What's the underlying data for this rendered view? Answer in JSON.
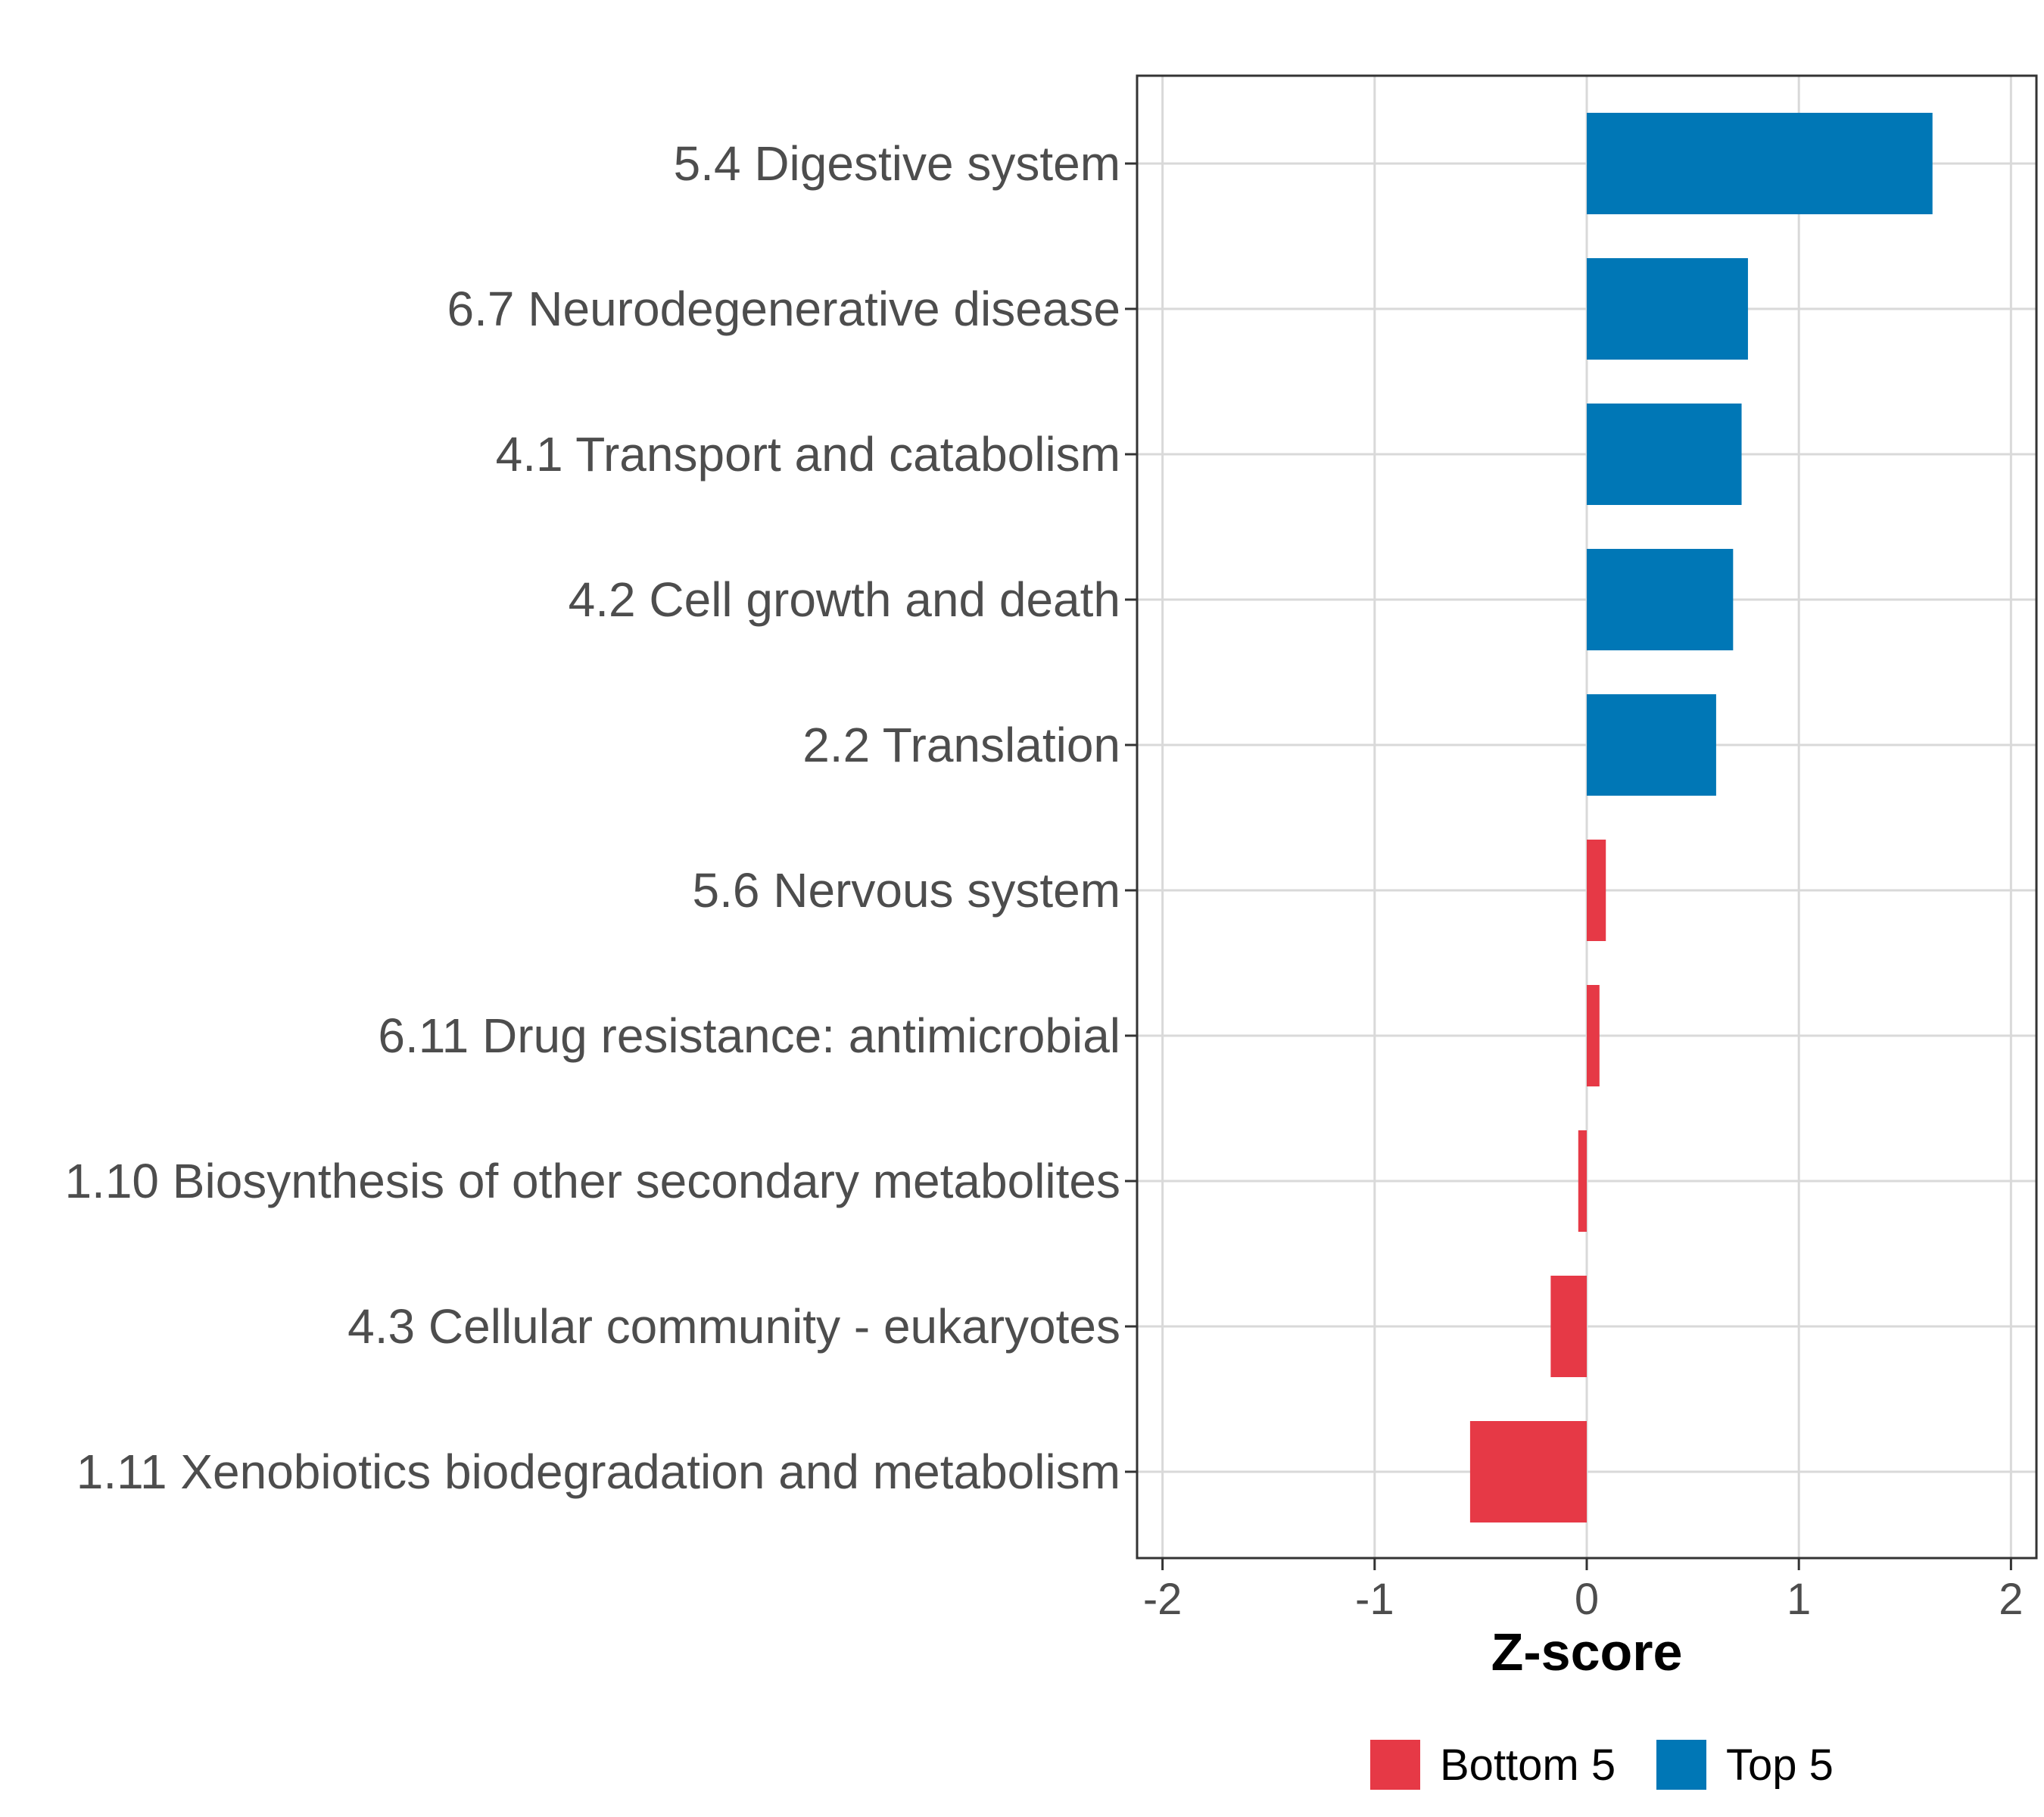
{
  "chart_data": {
    "type": "bar",
    "orientation": "horizontal",
    "title": "",
    "xlabel": "Z-score",
    "ylabel": "",
    "xlim": [
      -2.12,
      2.12
    ],
    "xticks": [
      -2,
      -1,
      0,
      1,
      2
    ],
    "xtick_labels": [
      "-2",
      "-1",
      "0",
      "1",
      "2"
    ],
    "grid": true,
    "categories": [
      "5.4 Digestive system",
      "6.7 Neurodegenerative disease",
      "4.1 Transport and catabolism",
      "4.2 Cell growth and death",
      "2.2 Translation",
      "5.6 Nervous system",
      "6.11 Drug resistance: antimicrobial",
      "1.10 Biosynthesis of other secondary metabolites",
      "4.3 Cellular community - eukaryotes",
      "1.11 Xenobiotics biodegradation and metabolism"
    ],
    "values": [
      1.63,
      0.76,
      0.73,
      0.69,
      0.61,
      0.09,
      0.06,
      -0.04,
      -0.17,
      -0.55
    ],
    "groups": [
      "Top 5",
      "Top 5",
      "Top 5",
      "Top 5",
      "Top 5",
      "Bottom 5",
      "Bottom 5",
      "Bottom 5",
      "Bottom 5",
      "Bottom 5"
    ],
    "legend": {
      "position": "bottom",
      "entries": [
        {
          "name": "Bottom 5",
          "color": "#e63946"
        },
        {
          "name": "Top 5",
          "color": "#0077b6"
        }
      ]
    }
  }
}
